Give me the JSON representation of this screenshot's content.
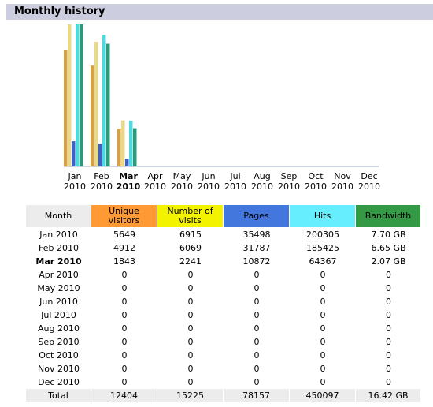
{
  "header": {
    "title": "Monthly history"
  },
  "chart": {
    "months": [
      "Jan",
      "Feb",
      "Mar",
      "Apr",
      "May",
      "Jun",
      "Jul",
      "Aug",
      "Sep",
      "Oct",
      "Nov",
      "Dec"
    ],
    "year": "2010",
    "current": 2
  },
  "table": {
    "month_header": "Month",
    "months": [
      "Jan 2010",
      "Feb 2010",
      "Mar 2010",
      "Apr 2010",
      "May 2010",
      "Jun 2010",
      "Jul 2010",
      "Aug 2010",
      "Sep 2010",
      "Oct 2010",
      "Nov 2010",
      "Dec 2010"
    ],
    "series": [
      {
        "name": "Unique visitors",
        "color": "#ff9933",
        "bar_color": "#d9a040",
        "values": [
          5649,
          4912,
          1843,
          0,
          0,
          0,
          0,
          0,
          0,
          0,
          0,
          0
        ],
        "total": 12404
      },
      {
        "name": "Number of visits",
        "color": "#f3f300",
        "bar_color": "#e8d888",
        "values": [
          6915,
          6069,
          2241,
          0,
          0,
          0,
          0,
          0,
          0,
          0,
          0,
          0
        ],
        "total": 15225
      },
      {
        "name": "Pages",
        "color": "#4477dd",
        "bar_color": "#3a62c8",
        "values": [
          35498,
          31787,
          10872,
          0,
          0,
          0,
          0,
          0,
          0,
          0,
          0,
          0
        ],
        "total": 78157
      },
      {
        "name": "Hits",
        "color": "#66eeff",
        "bar_color": "#4fd8e0",
        "values": [
          200305,
          185425,
          64367,
          0,
          0,
          0,
          0,
          0,
          0,
          0,
          0,
          0
        ],
        "total": 450097
      },
      {
        "name": "Bandwidth",
        "color": "#339944",
        "bar_color": "#2a9a78",
        "values": [
          7.7,
          6.65,
          2.07,
          0,
          0,
          0,
          0,
          0,
          0,
          0,
          0,
          0
        ],
        "value_labels": [
          "7.70 GB",
          "6.65 GB",
          "2.07 GB",
          "0",
          "0",
          "0",
          "0",
          "0",
          "0",
          "0",
          "0",
          "0"
        ],
        "total": 16.42,
        "total_label": "16.42 GB"
      }
    ],
    "total_label": "Total"
  }
}
